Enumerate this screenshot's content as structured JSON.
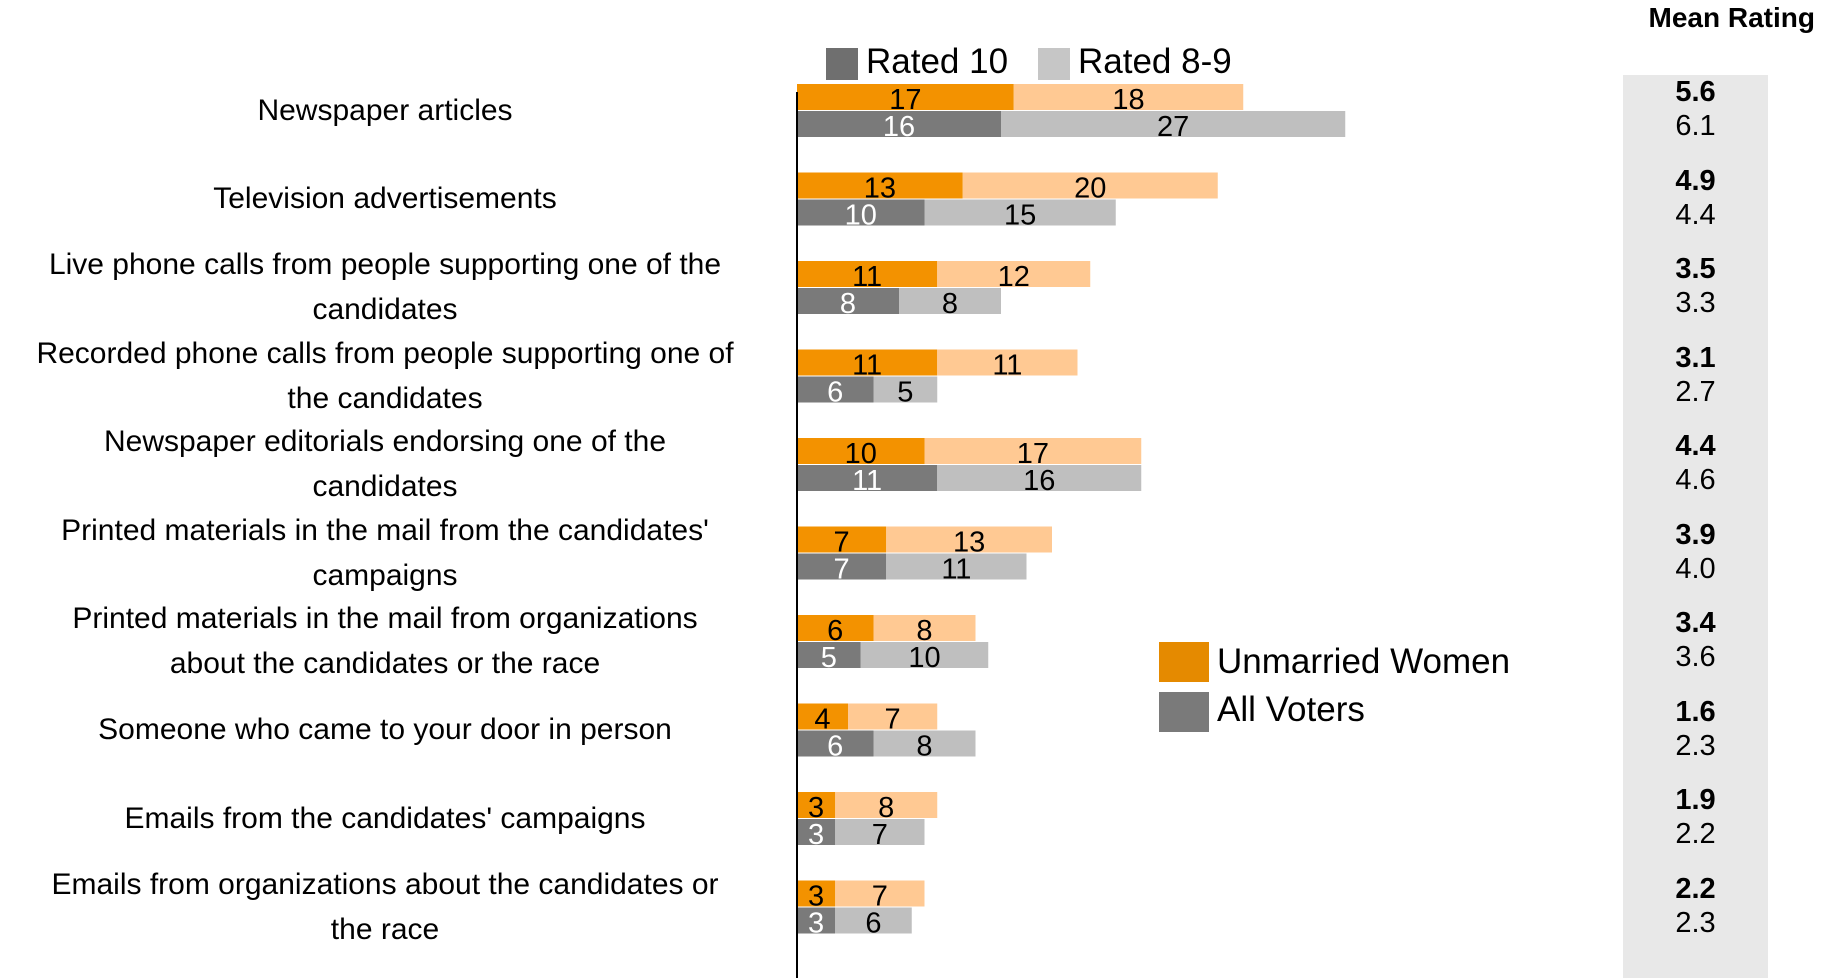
{
  "chart_data": {
    "type": "bar",
    "orientation": "horizontal",
    "stacked": true,
    "categories": [
      "Newspaper articles",
      "Television advertisements",
      "Live phone calls from people supporting one of the candidates",
      "Recorded phone calls from people supporting one of the candidates",
      "Newspaper editorials endorsing one of the candidates",
      "Printed materials in the mail from the candidates' campaigns",
      "Printed materials in the mail from organizations about the candidates or the race",
      "Someone who came to your door in person",
      "Emails from the candidates' campaigns",
      "Emails from organizations about the candidates or the race"
    ],
    "category_lines": [
      [
        "Newspaper articles"
      ],
      [
        "Television advertisements"
      ],
      [
        "Live phone calls from people supporting one of the",
        "candidates"
      ],
      [
        "Recorded phone calls from people supporting one of",
        "the candidates"
      ],
      [
        "Newspaper editorials endorsing one of the",
        "candidates"
      ],
      [
        "Printed materials in the mail from the candidates'",
        "campaigns"
      ],
      [
        "Printed materials in the mail from organizations",
        "about the candidates or the race"
      ],
      [
        "Someone who came to your door in person"
      ],
      [
        "Emails from the candidates' campaigns"
      ],
      [
        "Emails from organizations about the candidates or",
        "the race"
      ]
    ],
    "groups": [
      {
        "name": "Unmarried Women",
        "rated_10": [
          17,
          13,
          11,
          11,
          10,
          7,
          6,
          4,
          3,
          3
        ],
        "rated_8_9": [
          18,
          20,
          12,
          11,
          17,
          13,
          8,
          7,
          8,
          7
        ],
        "mean_rating": [
          "5.6",
          "4.9",
          "3.5",
          "3.1",
          "4.4",
          "3.9",
          "3.4",
          "1.6",
          "1.9",
          "2.2"
        ]
      },
      {
        "name": "All Voters",
        "rated_10": [
          16,
          10,
          8,
          6,
          11,
          7,
          5,
          6,
          3,
          3
        ],
        "rated_8_9": [
          27,
          15,
          8,
          5,
          16,
          11,
          10,
          8,
          7,
          6
        ],
        "mean_rating": [
          "6.1",
          "4.4",
          "3.3",
          "2.7",
          "4.6",
          "4.0",
          "3.6",
          "2.3",
          "2.2",
          "2.3"
        ]
      }
    ],
    "segments": [
      "Rated 10",
      "Rated 8-9"
    ],
    "xlim": [
      0,
      100
    ],
    "grid": false,
    "legend_top": [
      "Rated 10",
      "Rated 8-9"
    ],
    "legend_groups": [
      "Unmarried Women",
      "All Voters"
    ],
    "legend_placement": "right-middle",
    "mean_rating_title": "Mean Rating"
  },
  "colors": {
    "women_rated_10": "#f39200",
    "women_rated_8_9": "#ffc993",
    "voters_rated_10": "#7a7a7a",
    "voters_rated_8_9": "#bfbfbf",
    "legend_dark": "#6f6f6f",
    "legend_light": "#c6c6c6",
    "legend_women": "#e58a00",
    "legend_voters": "#7a7a7a",
    "label_light": "#ffffff",
    "label_dark": "#000000",
    "axis": "#000000",
    "mean_panel": "#e8e8e8"
  }
}
